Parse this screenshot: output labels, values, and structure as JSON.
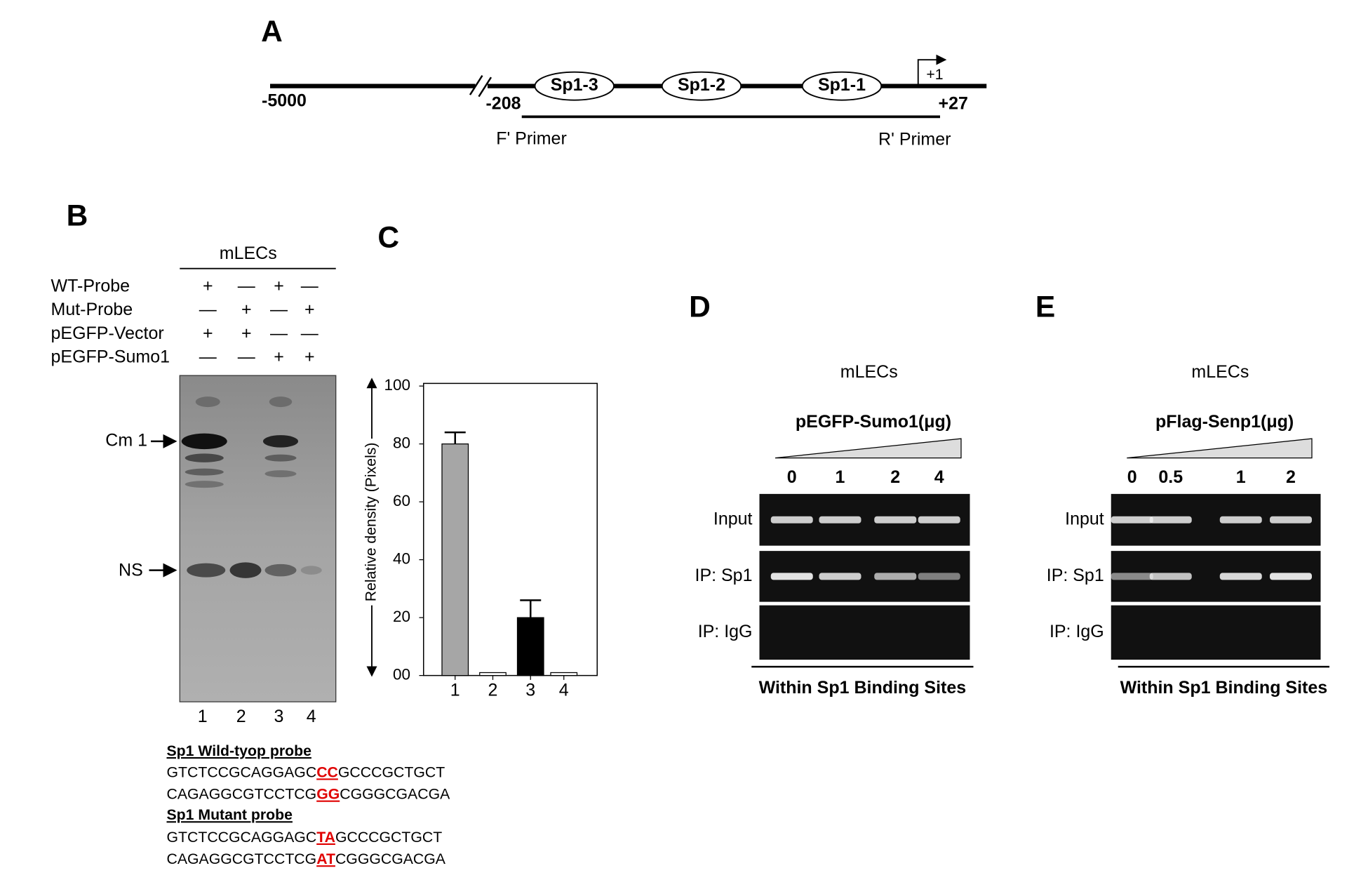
{
  "panel_a": {
    "label": "A",
    "start": "-5000",
    "break_pos": "-208",
    "end": "+27",
    "tss": "+1",
    "sites": [
      "Sp1-3",
      "Sp1-2",
      "Sp1-1"
    ],
    "primers": [
      "F' Primer",
      "R' Primer"
    ]
  },
  "panel_b": {
    "label": "B",
    "cells": "mLECs",
    "rows": [
      {
        "name": "WT-Probe",
        "signs": [
          "+",
          "—",
          "+",
          "—"
        ]
      },
      {
        "name": "Mut-Probe",
        "signs": [
          "—",
          "+",
          "—",
          "+"
        ]
      },
      {
        "name": "pEGFP-Vector",
        "signs": [
          "+",
          "+",
          "—",
          "—"
        ]
      },
      {
        "name": "pEGFP-Sumo1",
        "signs": [
          "—",
          "—",
          "+",
          "+"
        ]
      }
    ],
    "bands": [
      "Cm 1",
      "NS"
    ],
    "lanes": [
      "1",
      "2",
      "3",
      "4"
    ],
    "wild_title": "Sp1 Wild-tyop probe",
    "wild_lines": [
      [
        "GTCTCCGCAGGAGC",
        "CC",
        "GCCCGCTGCT"
      ],
      [
        "CAGAGGCGTCCTCG",
        "GG",
        "CGGGCGACGA"
      ]
    ],
    "mutant_title": "Sp1 Mutant probe",
    "mutant_lines": [
      [
        "GTCTCCGCAGGAGC",
        "TA",
        "GCCCGCTGCT"
      ],
      [
        "CAGAGGCGTCCTCG",
        "AT",
        "CGGGCGACGA"
      ]
    ]
  },
  "chart_data": {
    "type": "bar",
    "label": "C",
    "y_label": "Relative  density (Pixels)",
    "categories": [
      "1",
      "2",
      "3",
      "4"
    ],
    "values": [
      80,
      1,
      20,
      1
    ],
    "errors": [
      4,
      null,
      6,
      null
    ],
    "colors": [
      "#a6a6a6",
      "#ffffff",
      "#000000",
      "#ffffff"
    ],
    "ylim": [
      0,
      100
    ],
    "yticks": [
      {
        "value": 0,
        "label": "00"
      },
      20,
      40,
      60,
      80,
      100
    ]
  },
  "panel_d": {
    "label": "D",
    "cells": "mLECs",
    "treatment": "pEGFP-Sumo1(μg)",
    "doses": [
      "0",
      "1",
      "2",
      "4"
    ],
    "rows": [
      "Input",
      "IP: Sp1",
      "IP: IgG"
    ],
    "footer": "Within  Sp1 Binding Sites"
  },
  "panel_e": {
    "label": "E",
    "cells": "mLECs",
    "treatment": "pFlag-Senp1(μg)",
    "doses": [
      "0",
      "0.5",
      "1",
      "2"
    ],
    "rows": [
      "Input",
      "IP: Sp1",
      "IP: IgG"
    ],
    "footer": "Within  Sp1 Binding Sites"
  }
}
